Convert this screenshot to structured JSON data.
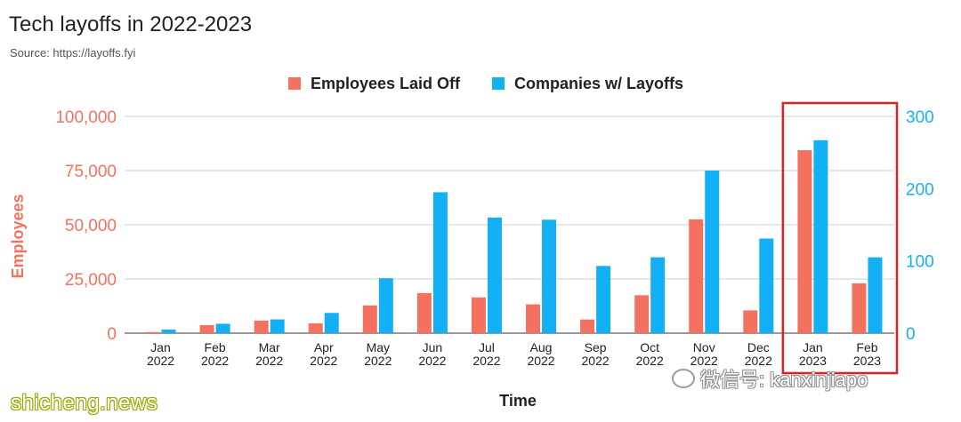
{
  "header": {
    "title": "Tech layoffs in 2022-2023",
    "source": "Source: https://layoffs.fyi"
  },
  "chart_data": {
    "type": "bar",
    "categories": [
      [
        "Jan",
        "2022"
      ],
      [
        "Feb",
        "2022"
      ],
      [
        "Mar",
        "2022"
      ],
      [
        "Apr",
        "2022"
      ],
      [
        "May",
        "2022"
      ],
      [
        "Jun",
        "2022"
      ],
      [
        "Jul",
        "2022"
      ],
      [
        "Aug",
        "2022"
      ],
      [
        "Sep",
        "2022"
      ],
      [
        "Oct",
        "2022"
      ],
      [
        "Nov",
        "2022"
      ],
      [
        "Dec",
        "2022"
      ],
      [
        "Jan",
        "2023"
      ],
      [
        "Feb",
        "2023"
      ]
    ],
    "series": [
      {
        "name": "Employees Laid Off",
        "axis": "left",
        "color": "#f4715f",
        "values": [
          510,
          3700,
          5800,
          4500,
          12800,
          18500,
          16500,
          13300,
          6300,
          17500,
          52500,
          10500,
          84400,
          23000
        ]
      },
      {
        "name": "Companies w/ Layoffs",
        "axis": "right",
        "color": "#13b0f5",
        "values": [
          5,
          13,
          19,
          28,
          76,
          195,
          160,
          157,
          93,
          105,
          225,
          131,
          267,
          105
        ]
      }
    ],
    "xlabel": "Time",
    "ylabel": "Employees",
    "y_left": {
      "min": 0,
      "max": 100000,
      "ticks": [
        "0",
        "25,000",
        "50,000",
        "75,000",
        "100,000"
      ],
      "color": "#f4715f"
    },
    "y_right": {
      "min": 0,
      "max": 300,
      "ticks": [
        "0",
        "100",
        "200",
        "300"
      ],
      "color": "#13b0f5"
    },
    "grid": true,
    "legend_position": "top-center",
    "highlight_color": "#e02020",
    "highlight_categories": [
      12,
      13
    ]
  },
  "watermarks": {
    "left": "shicheng.news",
    "right": "微信号: kanxinjiapo"
  }
}
